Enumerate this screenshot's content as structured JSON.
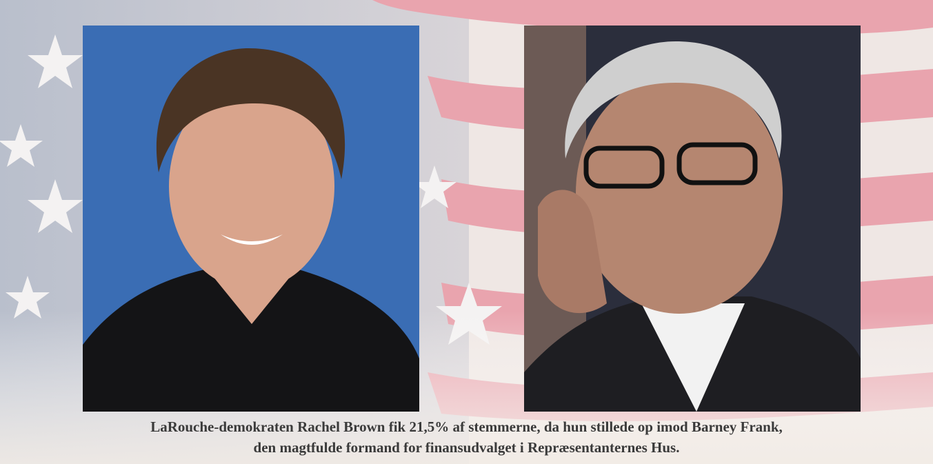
{
  "caption": [
    "LaRouche-demokraten Rachel Brown fik 21,5% af  stemmerne, da hun stillede op imod Barney Frank,",
    "den magtfulde formand for finansudvalget i Repræsentanternes Hus."
  ]
}
